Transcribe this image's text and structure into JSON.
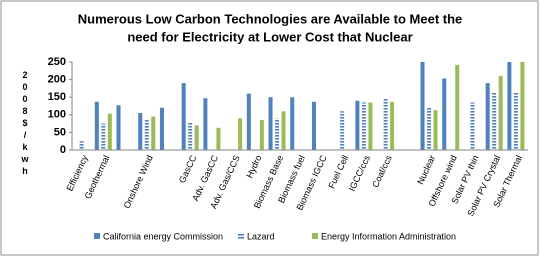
{
  "chart_data": {
    "type": "bar",
    "title": "Numerous Low Carbon Technologies are Available to Meet the",
    "subtitle": "need for Electricity at Lower Cost that Nuclear",
    "y_label": "2008$/kwh",
    "categories": [
      "Efficiency",
      "Geothermal",
      null,
      "Onshore Wind",
      null,
      "GasCC",
      "Adv. GasCC",
      "Adv. Gas/CCS",
      "Hydro",
      "Biomass Base",
      "Biomass fuel",
      "Biomass IGCC",
      "Fuel Cell",
      "IGCC/ccs",
      "Coal/ccs",
      null,
      "Nuclear",
      "Offshore wind",
      "Solar PV thin",
      "Solar PV Crystal",
      "Solar Thermal"
    ],
    "series": [
      {
        "name": "California energy Commission",
        "color": "#4f81bd",
        "pattern": "solid",
        "values": [
          null,
          137,
          127,
          105,
          120,
          190,
          147,
          null,
          160,
          150,
          150,
          137,
          null,
          140,
          null,
          null,
          250,
          203,
          null,
          190,
          250
        ]
      },
      {
        "name": "Lazard",
        "color": "#4f81bd",
        "pattern": "horizontal-lines",
        "values": [
          25,
          75,
          null,
          85,
          null,
          80,
          null,
          null,
          null,
          90,
          null,
          null,
          110,
          135,
          145,
          null,
          120,
          null,
          135,
          165,
          165
        ]
      },
      {
        "name": "Energy Information Administration",
        "color": "#9bbb59",
        "pattern": "solid",
        "values": [
          null,
          103,
          null,
          95,
          null,
          70,
          63,
          90,
          85,
          110,
          null,
          null,
          null,
          135,
          137,
          null,
          113,
          242,
          null,
          210,
          250
        ]
      }
    ],
    "ylim": [
      0,
      250
    ],
    "yticks": [
      0,
      50,
      100,
      150,
      200,
      250
    ],
    "grid": false,
    "legend": "bottom"
  }
}
